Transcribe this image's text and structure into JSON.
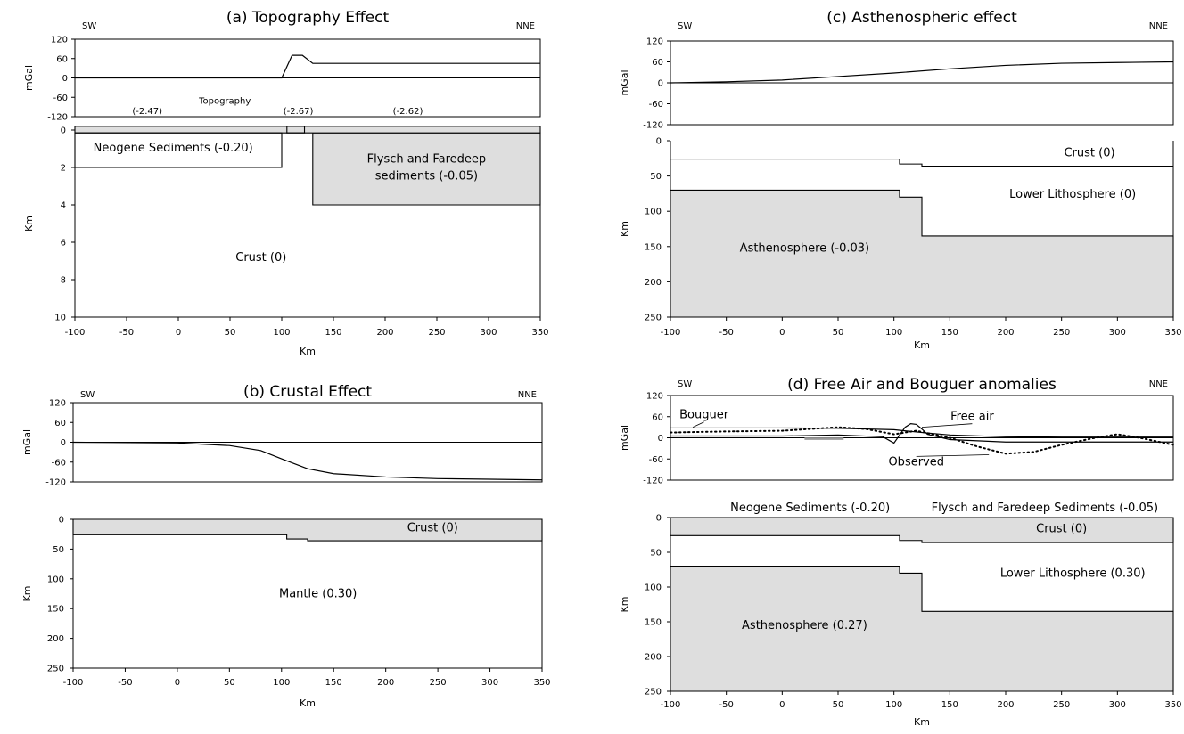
{
  "colors": {
    "fill": "#dedede",
    "line": "#000000",
    "background": "#ffffff"
  },
  "chart_data": [
    {
      "id": "a",
      "type": "line",
      "title": "(a) Topography Effect",
      "dir_left": "SW",
      "dir_right": "NNE",
      "gravity": {
        "ylabel": "mGal",
        "ylim": [
          -120,
          120
        ],
        "yticks": [
          "120",
          "60",
          "0",
          "-60",
          "-120"
        ],
        "series": [
          {
            "style": "solid",
            "x": [
              -100,
              100,
              110,
              120,
              130,
              350
            ],
            "y": [
              0,
              0,
              70,
              70,
              45,
              45
            ]
          }
        ],
        "annotations": []
      },
      "model": {
        "ylabel": "Km",
        "ylim": [
          0,
          10
        ],
        "yticks": [
          "0",
          "2",
          "4",
          "6",
          "8",
          "10"
        ],
        "xlabel": "Km",
        "xlim": [
          -100,
          350
        ],
        "xticks": [
          "-100",
          "-50",
          "0",
          "50",
          "100",
          "150",
          "200",
          "250",
          "300",
          "350"
        ],
        "bodies": [
          {
            "fill": true,
            "pts": [
              [
                130,
                0.15
              ],
              [
                350,
                0.15
              ],
              [
                350,
                4
              ],
              [
                130,
                4
              ]
            ]
          },
          {
            "fill": true,
            "pts": [
              [
                -100,
                -0.2
              ],
              [
                350,
                -0.2
              ],
              [
                350,
                0.15
              ],
              [
                -100,
                0.15
              ]
            ]
          },
          {
            "fill": false,
            "pts": [
              [
                -100,
                0.15
              ],
              [
                100,
                0.15
              ],
              [
                100,
                2
              ],
              [
                -100,
                2
              ]
            ]
          },
          {
            "fill": false,
            "pts": [
              [
                105,
                -0.2
              ],
              [
                122,
                -0.2
              ],
              [
                122,
                0.15
              ],
              [
                105,
                0.15
              ]
            ]
          }
        ],
        "labels": [
          {
            "text": "Neogene Sediments (-0.20)",
            "x": -5,
            "y": 0.95,
            "size": "label"
          },
          {
            "text": "Flysch and Faredeep",
            "x": 240,
            "y": 1.55,
            "size": "label"
          },
          {
            "text": "sediments (-0.05)",
            "x": 240,
            "y": 2.45,
            "size": "label"
          },
          {
            "text": "Crust (0)",
            "x": 80,
            "y": 6.8,
            "size": "label"
          },
          {
            "text": "Topography",
            "x": 45,
            "y": -1.6,
            "size": "small"
          },
          {
            "text": "(-2.47)",
            "x": -30,
            "y": -1.05,
            "size": "small"
          },
          {
            "text": "(-2.67)",
            "x": 116,
            "y": -1.05,
            "size": "small"
          },
          {
            "text": "(-2.62)",
            "x": 222,
            "y": -1.05,
            "size": "small"
          }
        ]
      }
    },
    {
      "id": "b",
      "type": "line",
      "title": "(b) Crustal Effect",
      "dir_left": "SW",
      "dir_right": "NNE",
      "gravity": {
        "ylabel": "mGal",
        "ylim": [
          -120,
          120
        ],
        "yticks": [
          "120",
          "60",
          "0",
          "-60",
          "-120"
        ],
        "series": [
          {
            "style": "solid",
            "x": [
              -100,
              0,
              50,
              80,
              100,
              125,
              150,
              200,
              250,
              300,
              350
            ],
            "y": [
              0,
              -2,
              -10,
              -25,
              -50,
              -80,
              -95,
              -105,
              -110,
              -112,
              -114
            ]
          }
        ],
        "annotations": []
      },
      "model": {
        "ylabel": "Km",
        "ylim": [
          0,
          250
        ],
        "yticks": [
          "0",
          "50",
          "100",
          "150",
          "200",
          "250"
        ],
        "xlabel": "Km",
        "xlim": [
          -100,
          350
        ],
        "xticks": [
          "-100",
          "-50",
          "0",
          "50",
          "100",
          "150",
          "200",
          "250",
          "300",
          "350"
        ],
        "bodies": [
          {
            "fill": true,
            "pts": [
              [
                -100,
                0
              ],
              [
                350,
                0
              ],
              [
                350,
                36
              ],
              [
                125,
                36
              ],
              [
                125,
                33
              ],
              [
                105,
                33
              ],
              [
                105,
                26
              ],
              [
                -100,
                26
              ]
            ]
          }
        ],
        "labels": [
          {
            "text": "Crust (0)",
            "x": 245,
            "y": 14,
            "size": "label"
          },
          {
            "text": "Mantle (0.30)",
            "x": 135,
            "y": 125,
            "size": "label"
          }
        ]
      }
    },
    {
      "id": "c",
      "type": "line",
      "title": "(c) Asthenospheric effect",
      "dir_left": "SW",
      "dir_right": "NNE",
      "gravity": {
        "ylabel": "mGal",
        "ylim": [
          -120,
          120
        ],
        "yticks": [
          "120",
          "60",
          "0",
          "-60",
          "-120"
        ],
        "series": [
          {
            "style": "solid",
            "x": [
              -100,
              -50,
              0,
              50,
              100,
              150,
              200,
              250,
              300,
              350
            ],
            "y": [
              0,
              3,
              8,
              18,
              28,
              40,
              50,
              56,
              58,
              60
            ]
          }
        ],
        "annotations": []
      },
      "model": {
        "ylabel": "Km",
        "ylim": [
          0,
          250
        ],
        "yticks": [
          "0",
          "50",
          "100",
          "150",
          "200",
          "250"
        ],
        "xlabel": "Km",
        "xlim": [
          -100,
          350
        ],
        "xticks": [
          "-100",
          "-50",
          "0",
          "50",
          "100",
          "150",
          "200",
          "250",
          "300",
          "350"
        ],
        "bodies": [
          {
            "fill": true,
            "pts": [
              [
                -100,
                70
              ],
              [
                105,
                70
              ],
              [
                105,
                80
              ],
              [
                125,
                80
              ],
              [
                125,
                135
              ],
              [
                350,
                135
              ],
              [
                350,
                250
              ],
              [
                -100,
                250
              ]
            ]
          }
        ],
        "lines": [
          {
            "pts": [
              [
                -100,
                26
              ],
              [
                105,
                26
              ],
              [
                105,
                33
              ],
              [
                125,
                33
              ],
              [
                125,
                36
              ],
              [
                350,
                36
              ]
            ]
          }
        ],
        "labels": [
          {
            "text": "Crust (0)",
            "x": 275,
            "y": 17,
            "size": "label"
          },
          {
            "text": "Lower Lithosphere (0)",
            "x": 260,
            "y": 76,
            "size": "label"
          },
          {
            "text": "Asthenosphere (-0.03)",
            "x": 20,
            "y": 152,
            "size": "label"
          }
        ]
      }
    },
    {
      "id": "d",
      "type": "line",
      "title": "(d) Free Air and Bouguer anomalies",
      "dir_left": "SW",
      "dir_right": "NNE",
      "gravity": {
        "ylabel": "mGal",
        "ylim": [
          -120,
          120
        ],
        "yticks": [
          "120",
          "60",
          "0",
          "-60",
          "-120"
        ],
        "series": [
          {
            "name": "Bouguer",
            "style": "solid",
            "x": [
              -100,
              0,
              50,
              100,
              125,
              150,
              200,
              250,
              300,
              350
            ],
            "y": [
              28,
              28,
              27,
              23,
              15,
              8,
              3,
              2,
              2,
              2
            ]
          },
          {
            "name": "Free air",
            "style": "solid",
            "x": [
              -100,
              0,
              50,
              90,
              100,
              110,
              115,
              120,
              125,
              130,
              150,
              200,
              250,
              300,
              350
            ],
            "y": [
              5,
              5,
              8,
              3,
              -15,
              30,
              40,
              38,
              25,
              10,
              -5,
              -12,
              -12,
              -12,
              -12
            ]
          },
          {
            "name": "Observed",
            "style": "dotted",
            "x": [
              -100,
              -50,
              0,
              25,
              50,
              75,
              100,
              120,
              150,
              175,
              200,
              225,
              250,
              280,
              300,
              320,
              350
            ],
            "y": [
              15,
              18,
              20,
              25,
              30,
              25,
              10,
              20,
              0,
              -25,
              -45,
              -40,
              -20,
              0,
              10,
              0,
              -20
            ]
          }
        ],
        "annotations": [
          {
            "text": "Bouguer",
            "x": -70,
            "y": 55,
            "ax": -80,
            "ay": 30
          },
          {
            "text": "Free air",
            "x": 170,
            "y": 50,
            "ax": 125,
            "ay": 30
          },
          {
            "text": "Observed",
            "x": 120,
            "y": -78,
            "ax": 185,
            "ay": -48
          }
        ],
        "rects": [
          {
            "x0": 20,
            "x1": 55,
            "y0": -6,
            "y1": 1
          }
        ]
      },
      "model": {
        "ylabel": "Km",
        "ylim": [
          0,
          250
        ],
        "yticks": [
          "0",
          "50",
          "100",
          "150",
          "200",
          "250"
        ],
        "xlabel": "Km",
        "xlim": [
          -100,
          350
        ],
        "xticks": [
          "-100",
          "-50",
          "0",
          "50",
          "100",
          "150",
          "200",
          "250",
          "300",
          "350"
        ],
        "bodies": [
          {
            "fill": true,
            "pts": [
              [
                -100,
                0
              ],
              [
                350,
                0
              ],
              [
                350,
                36
              ],
              [
                125,
                36
              ],
              [
                125,
                33
              ],
              [
                105,
                33
              ],
              [
                105,
                26
              ],
              [
                -100,
                26
              ]
            ]
          },
          {
            "fill": true,
            "pts": [
              [
                -100,
                70
              ],
              [
                105,
                70
              ],
              [
                105,
                80
              ],
              [
                125,
                80
              ],
              [
                125,
                135
              ],
              [
                350,
                135
              ],
              [
                350,
                250
              ],
              [
                -100,
                250
              ]
            ]
          }
        ],
        "lines": [],
        "labels": [
          {
            "text": "Crust (0)",
            "x": 250,
            "y": 16,
            "size": "label"
          },
          {
            "text": "Lower Lithosphere (0.30)",
            "x": 260,
            "y": 80,
            "size": "label"
          },
          {
            "text": "Asthenosphere (0.27)",
            "x": 20,
            "y": 155,
            "size": "label"
          },
          {
            "text": "Neogene Sediments (-0.20)",
            "x": 25,
            "y": -14,
            "size": "label"
          },
          {
            "text": "Flysch and Faredeep Sediments (-0.05)",
            "x": 235,
            "y": -14,
            "size": "label"
          }
        ]
      }
    }
  ]
}
